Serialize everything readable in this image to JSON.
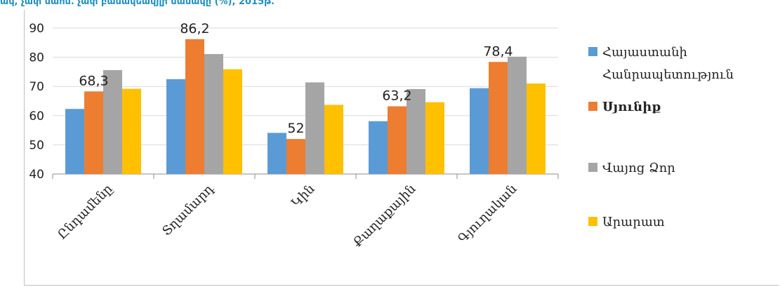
{
  "top_text": "ակ, չափ սահմ. չափ բանակեակյլի սասակը (%), 2015թ.",
  "chart_data": {
    "type": "bar",
    "categories": [
      "Ընդամենը",
      "Տղամարդ",
      "Կին",
      "Քաղաքային",
      "Գյուղական"
    ],
    "series": [
      {
        "name": "Հայաստանի Հանրապետություն",
        "values": [
          62.3,
          72.5,
          54.1,
          58.1,
          69.4
        ],
        "color": "#5b9bd5"
      },
      {
        "name": "Սյունիք",
        "values": [
          68.3,
          86.2,
          52,
          63.2,
          78.4
        ],
        "color": "#ed7d31"
      },
      {
        "name": "Վայոց Ձոր",
        "values": [
          75.6,
          81.1,
          71.4,
          69.1,
          80.2
        ],
        "color": "#a5a5a5"
      },
      {
        "name": "Արարատ",
        "values": [
          69.2,
          75.9,
          63.7,
          64.6,
          71.0
        ],
        "color": "#ffc000"
      }
    ],
    "data_labels": [
      {
        "category": 0,
        "series": 1,
        "text": "68,3"
      },
      {
        "category": 1,
        "series": 1,
        "text": "86,2"
      },
      {
        "category": 2,
        "series": 1,
        "text": "52"
      },
      {
        "category": 3,
        "series": 1,
        "text": "63,2"
      },
      {
        "category": 4,
        "series": 1,
        "text": "78,4"
      }
    ],
    "ylim": [
      40,
      90
    ],
    "yticks": [
      40,
      50,
      60,
      70,
      80,
      90
    ],
    "grid": true,
    "legend": "right"
  },
  "legend_items": [
    {
      "lines": [
        "Հայաստանի",
        "Հանրապետություն"
      ],
      "bold": false
    },
    {
      "lines": [
        "Սյունիք"
      ],
      "bold": true
    },
    {
      "lines": [
        "Վայոց Ձոր"
      ],
      "bold": false
    },
    {
      "lines": [
        "Արարատ"
      ],
      "bold": false
    }
  ]
}
